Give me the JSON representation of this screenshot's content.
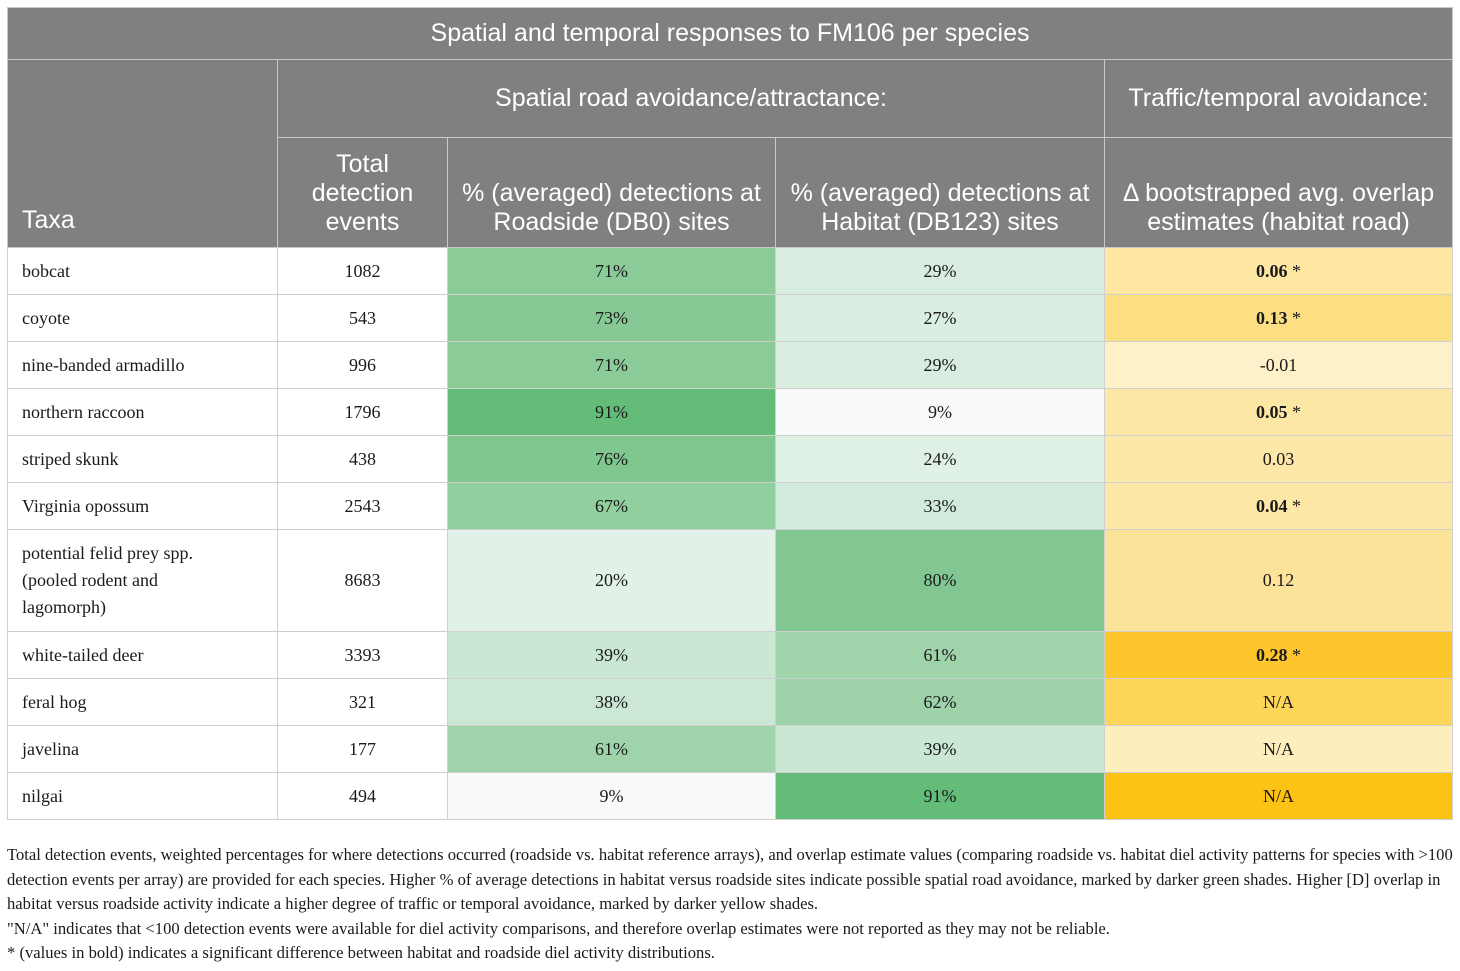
{
  "title": "Spatial and temporal responses to FM106 per species",
  "group_spatial": "Spatial road avoidance/attractance:",
  "group_temporal": "Traffic/temporal avoidance:",
  "headers": {
    "taxa": "Taxa",
    "total": "Total detection events",
    "roadside": "% (averaged) detections at Roadside (DB0) sites",
    "habitat": "% (averaged) detections at Habitat (DB123) sites",
    "overlap": "Δ bootstrapped avg. overlap estimates (habitat road)"
  },
  "rows": [
    {
      "taxa": "bobcat",
      "total": "1082",
      "roadside": "71%",
      "habitat": "29%",
      "overlap": "0.06",
      "star": "*",
      "bold": true,
      "c_road": "#8acb98",
      "c_hab": "#d8eddf",
      "c_ov": "#fde7a3"
    },
    {
      "taxa": "coyote",
      "total": "543",
      "roadside": "73%",
      "habitat": "27%",
      "overlap": "0.13",
      "star": "*",
      "bold": true,
      "c_road": "#86c995",
      "c_hab": "#daeee1",
      "c_ov": "#fddf83"
    },
    {
      "taxa": "nine-banded armadillo",
      "total": "996",
      "roadside": "71%",
      "habitat": "29%",
      "overlap": "-0.01",
      "star": "",
      "bold": false,
      "c_road": "#8acb98",
      "c_hab": "#d8eddf",
      "c_ov": "#fef0c8"
    },
    {
      "taxa": "northern raccoon",
      "total": "1796",
      "roadside": "91%",
      "habitat": "9%",
      "overlap": "0.05",
      "star": "*",
      "bold": true,
      "c_road": "#63bd79",
      "c_hab": "#f8f9fb",
      "c_ov": "#fde7a5"
    },
    {
      "taxa": "striped skunk",
      "total": "438",
      "roadside": "76%",
      "habitat": "24%",
      "overlap": "0.03",
      "star": "",
      "bold": false,
      "c_road": "#80c68f",
      "c_hab": "#dff0e5",
      "c_ov": "#fde8aa"
    },
    {
      "taxa": "Virginia opossum",
      "total": "2543",
      "roadside": "67%",
      "habitat": "33%",
      "overlap": "0.04",
      "star": "*",
      "bold": true,
      "c_road": "#92cf9f",
      "c_hab": "#d0eadb",
      "c_ov": "#fde7a6"
    },
    {
      "taxa": "potential felid prey spp. (pooled rodent and lagomorph)",
      "total": "8683",
      "roadside": "20%",
      "habitat": "80%",
      "overlap": "0.12",
      "star": "",
      "bold": false,
      "c_road": "#e2f1e8",
      "c_hab": "#82c791",
      "c_ov": "#fde399"
    },
    {
      "taxa": "white-tailed deer",
      "total": "3393",
      "roadside": "39%",
      "habitat": "61%",
      "overlap": "0.28",
      "star": "*",
      "bold": true,
      "c_road": "#c9e7d3",
      "c_hab": "#9fd4ab",
      "c_ov": "#fdc62c"
    },
    {
      "taxa": "feral hog",
      "total": "321",
      "roadside": "38%",
      "habitat": "62%",
      "overlap": "N/A",
      "star": "",
      "bold": false,
      "c_road": "#cbe8d5",
      "c_hab": "#9ed3aa",
      "c_ov": "#fdd558"
    },
    {
      "taxa": "javelina",
      "total": "177",
      "roadside": "61%",
      "habitat": "39%",
      "overlap": "N/A",
      "star": "",
      "bold": false,
      "c_road": "#9fd4ab",
      "c_hab": "#c9e7d3",
      "c_ov": "#fdeebd"
    },
    {
      "taxa": "nilgai",
      "total": "494",
      "roadside": "9%",
      "habitat": "91%",
      "overlap": "N/A",
      "star": "",
      "bold": false,
      "c_road": "#f8f9fb",
      "c_hab": "#63bd79",
      "c_ov": "#fdc314"
    }
  ],
  "footnotes": [
    "Total detection events, weighted percentages for where detections occurred (roadside vs. habitat reference arrays), and overlap estimate values (comparing roadside vs. habitat diel activity patterns for species with >100 detection events per array) are provided for each species. Higher % of average detections in habitat versus roadside sites indicate possible spatial road avoidance, marked by darker green shades. Higher [D] overlap in habitat versus roadside activity indicate a higher degree of traffic or temporal avoidance, marked by darker yellow shades.",
    "\"N/A\" indicates that <100 detection events were available for diel activity comparisons, and therefore overlap estimates were not reported as they may not be reliable.",
    "* (values in bold) indicates a significant difference between habitat and roadside diel activity distributions."
  ]
}
